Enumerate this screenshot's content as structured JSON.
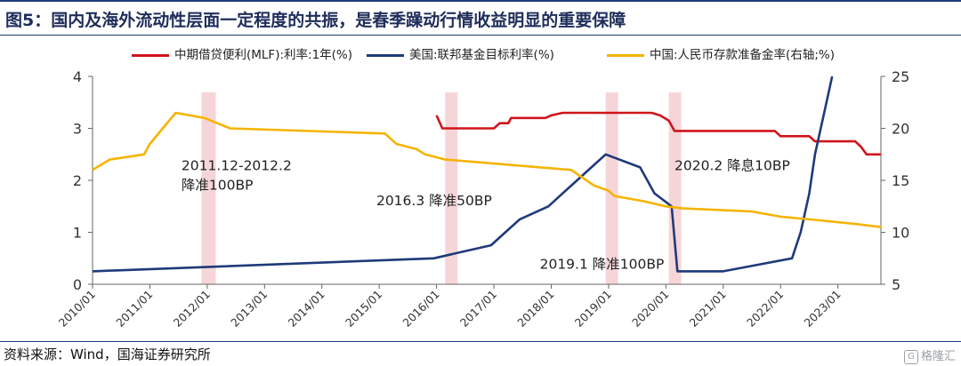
{
  "header": {
    "title": "图5：国内及海外流动性层面一定程度的共振，是春季躁动行情收益明显的重要保障"
  },
  "footer": {
    "source": "资料来源：Wind，国海证券研究所",
    "watermark": "格隆汇"
  },
  "chart_data": {
    "type": "line",
    "legend": [
      {
        "name": "中期借贷便利(MLF):利率:1年(%)",
        "color": "#d0141c"
      },
      {
        "name": "美国:联邦基金目标利率(%)",
        "color": "#1f3a7a"
      },
      {
        "name": "中国:人民币存款准备金率(右轴;%)",
        "color": "#f5b400"
      }
    ],
    "x_ticks": [
      "2010/01",
      "2011/01",
      "2012/01",
      "2013/01",
      "2014/01",
      "2015/01",
      "2016/01",
      "2017/01",
      "2018/01",
      "2019/01",
      "2020/01",
      "2021/01",
      "2022/01",
      "2023/01"
    ],
    "y_left": {
      "ticks": [
        0,
        1,
        2,
        3,
        4
      ],
      "range": [
        0,
        4
      ]
    },
    "y_right": {
      "ticks": [
        5,
        10,
        15,
        20,
        25
      ],
      "range": [
        5,
        25
      ]
    },
    "x_range": [
      2010.0,
      2023.75
    ],
    "series": [
      {
        "name": "中期借贷便利(MLF):利率:1年(%)",
        "axis": "left",
        "color": "#d0141c",
        "points": [
          [
            2016.0,
            3.25
          ],
          [
            2016.1,
            3.0
          ],
          [
            2016.2,
            3.0
          ],
          [
            2017.0,
            3.0
          ],
          [
            2017.1,
            3.1
          ],
          [
            2017.25,
            3.1
          ],
          [
            2017.3,
            3.2
          ],
          [
            2017.9,
            3.2
          ],
          [
            2018.0,
            3.25
          ],
          [
            2018.2,
            3.3
          ],
          [
            2019.75,
            3.3
          ],
          [
            2019.9,
            3.25
          ],
          [
            2020.05,
            3.15
          ],
          [
            2020.15,
            2.95
          ],
          [
            2021.9,
            2.95
          ],
          [
            2022.0,
            2.85
          ],
          [
            2022.5,
            2.85
          ],
          [
            2022.6,
            2.75
          ],
          [
            2023.3,
            2.75
          ],
          [
            2023.4,
            2.65
          ],
          [
            2023.5,
            2.5
          ],
          [
            2023.75,
            2.5
          ]
        ]
      },
      {
        "name": "美国:联邦基金目标利率(%)",
        "axis": "left",
        "color": "#1f3a7a",
        "points": [
          [
            2010.0,
            0.25
          ],
          [
            2015.95,
            0.5
          ],
          [
            2016.95,
            0.75
          ],
          [
            2017.2,
            1.0
          ],
          [
            2017.45,
            1.25
          ],
          [
            2017.95,
            1.5
          ],
          [
            2018.2,
            1.75
          ],
          [
            2018.45,
            2.0
          ],
          [
            2018.7,
            2.25
          ],
          [
            2018.95,
            2.5
          ],
          [
            2019.55,
            2.25
          ],
          [
            2019.8,
            1.75
          ],
          [
            2020.1,
            1.5
          ],
          [
            2020.2,
            0.25
          ],
          [
            2021.0,
            0.25
          ],
          [
            2022.2,
            0.5
          ],
          [
            2022.35,
            1.0
          ],
          [
            2022.5,
            1.75
          ],
          [
            2022.6,
            2.5
          ],
          [
            2022.75,
            3.25
          ],
          [
            2022.9,
            4.0
          ]
        ]
      },
      {
        "name": "中国:人民币存款准备金率(右轴;%)",
        "axis": "right",
        "color": "#f5b400",
        "points": [
          [
            2010.0,
            16.0
          ],
          [
            2010.3,
            17.0
          ],
          [
            2010.9,
            17.5
          ],
          [
            2011.0,
            18.5
          ],
          [
            2011.45,
            21.5
          ],
          [
            2011.95,
            21.0
          ],
          [
            2012.4,
            20.0
          ],
          [
            2015.1,
            19.5
          ],
          [
            2015.3,
            18.5
          ],
          [
            2015.65,
            18.0
          ],
          [
            2015.8,
            17.5
          ],
          [
            2016.15,
            17.0
          ],
          [
            2018.35,
            16.0
          ],
          [
            2018.75,
            14.5
          ],
          [
            2019.0,
            14.0
          ],
          [
            2019.1,
            13.5
          ],
          [
            2019.6,
            13.0
          ],
          [
            2020.0,
            12.5
          ],
          [
            2020.3,
            12.3
          ],
          [
            2021.5,
            12.0
          ],
          [
            2022.0,
            11.5
          ],
          [
            2022.6,
            11.2
          ],
          [
            2023.3,
            10.8
          ],
          [
            2023.75,
            10.5
          ]
        ]
      }
    ],
    "shaded_periods": [
      {
        "start": 2011.9,
        "end": 2012.15
      },
      {
        "start": 2016.15,
        "end": 2016.3
      },
      {
        "start": 2018.95,
        "end": 2019.15
      },
      {
        "start": 2020.05,
        "end": 2020.2
      }
    ],
    "annotations": [
      {
        "lines": [
          "2011.12-2012.2",
          "降准100BP"
        ],
        "x": 2011.55,
        "y": 2.2,
        "axis": "left"
      },
      {
        "lines": [
          "2016.3 降准50BP"
        ],
        "x": 2014.95,
        "y": 1.52,
        "axis": "left"
      },
      {
        "lines": [
          "2019.1 降准100BP"
        ],
        "x": 2017.8,
        "y": 0.3,
        "axis": "left"
      },
      {
        "lines": [
          "2020.2 降息10BP"
        ],
        "x": 2020.15,
        "y": 2.2,
        "axis": "left"
      }
    ]
  }
}
